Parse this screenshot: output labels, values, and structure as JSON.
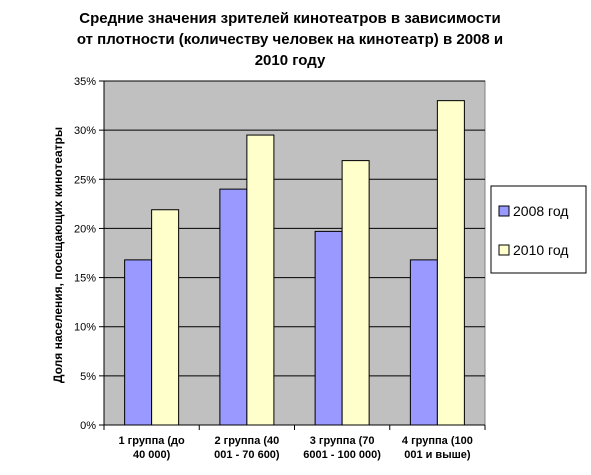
{
  "chart_data": {
    "type": "bar",
    "title": "Средние значения зрителей кинотеатров в зависимости\nот плотности (количеству человек на кинотеатр) в 2008 и\n2010 году",
    "ylabel": "Доля населения, посещающих кинотеатры",
    "xlabel": "",
    "categories": [
      [
        "1 группа (до",
        "40 000)"
      ],
      [
        "2 группа (40",
        "001 - 70 600)"
      ],
      [
        "3 группа (70",
        "6001 - 100 000)"
      ],
      [
        "4 группа (100",
        "001 и выше)"
      ]
    ],
    "series": [
      {
        "name": "2008 год",
        "color": "#9999ff",
        "values": [
          16.8,
          24.0,
          19.7,
          16.8
        ]
      },
      {
        "name": "2010 год",
        "color": "#ffffcc",
        "values": [
          21.9,
          29.5,
          26.9,
          33.0
        ]
      }
    ],
    "ylim": [
      0,
      35
    ],
    "yticks": [
      0,
      5,
      10,
      15,
      20,
      25,
      30,
      35
    ],
    "ytick_labels": [
      "0%",
      "5%",
      "10%",
      "15%",
      "20%",
      "25%",
      "30%",
      "35%"
    ],
    "plot_background": "#c0c0c0",
    "grid": true,
    "legend_position": "right"
  }
}
